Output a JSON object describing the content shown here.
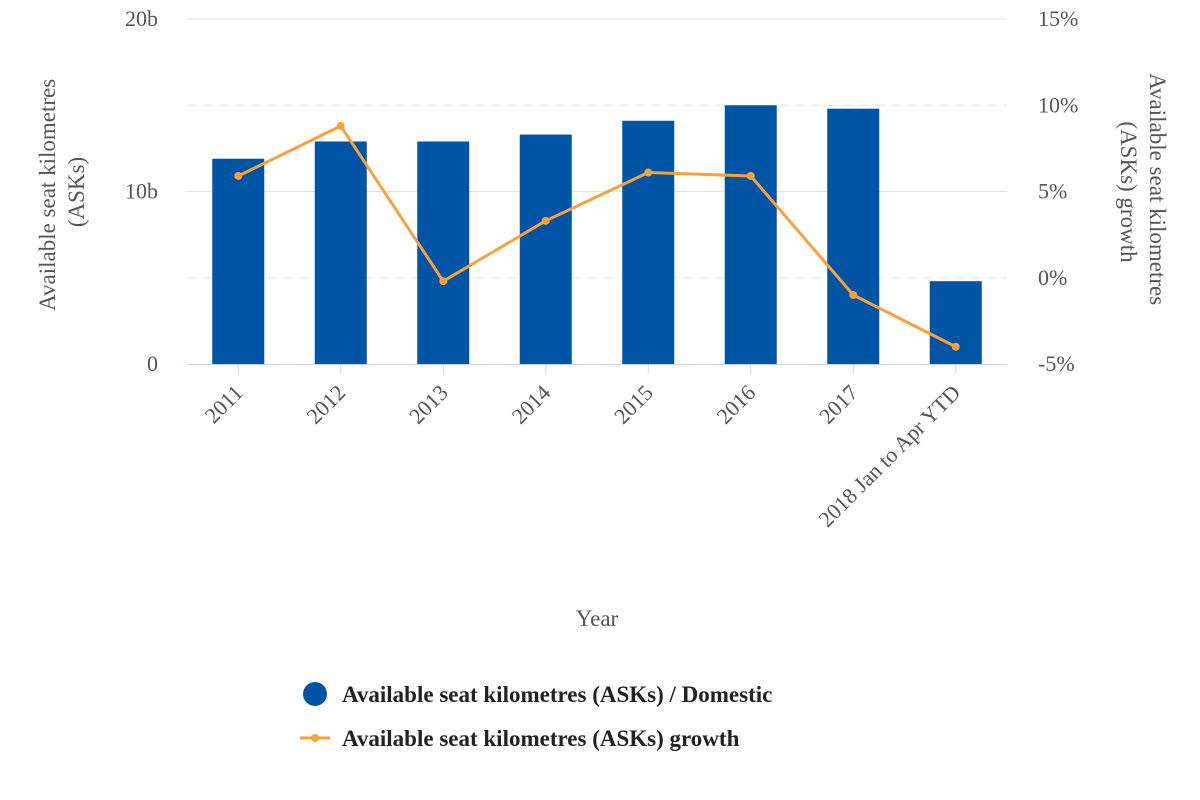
{
  "chart_data": {
    "type": "bar",
    "categories": [
      "2011",
      "2012",
      "2013",
      "2014",
      "2015",
      "2016",
      "2017",
      "2018 Jan to Apr YTD"
    ],
    "series": [
      {
        "name": "Available seat kilometres (ASKs) / Domestic",
        "type": "bar",
        "axis": "left",
        "color": "#0054a6",
        "values": [
          11.9,
          12.9,
          12.9,
          13.3,
          14.1,
          15.0,
          14.8,
          4.8
        ]
      },
      {
        "name": "Available seat kilometres (ASKs) growth",
        "type": "line",
        "axis": "right",
        "color": "#f9a13a",
        "values": [
          5.9,
          8.8,
          -0.2,
          3.3,
          6.1,
          5.9,
          -1.0,
          -4.0
        ]
      }
    ],
    "xlabel": "Year",
    "ylabel_left": "Available seat kilometres (ASKs)",
    "ylabel_right": "Available seat kilometres (ASKs) growth",
    "ylim_left": [
      0,
      20
    ],
    "ylim_right": [
      -5,
      15
    ],
    "left_ticks": [
      {
        "value": 0,
        "label": "0"
      },
      {
        "value": 10,
        "label": "10b"
      },
      {
        "value": 20,
        "label": "20b"
      }
    ],
    "right_ticks": [
      {
        "value": -5,
        "label": "-5%"
      },
      {
        "value": 0,
        "label": "0%"
      },
      {
        "value": 5,
        "label": "5%"
      },
      {
        "value": 10,
        "label": "10%"
      },
      {
        "value": 15,
        "label": "15%"
      }
    ],
    "grid": true,
    "legend_position": "bottom-center"
  }
}
